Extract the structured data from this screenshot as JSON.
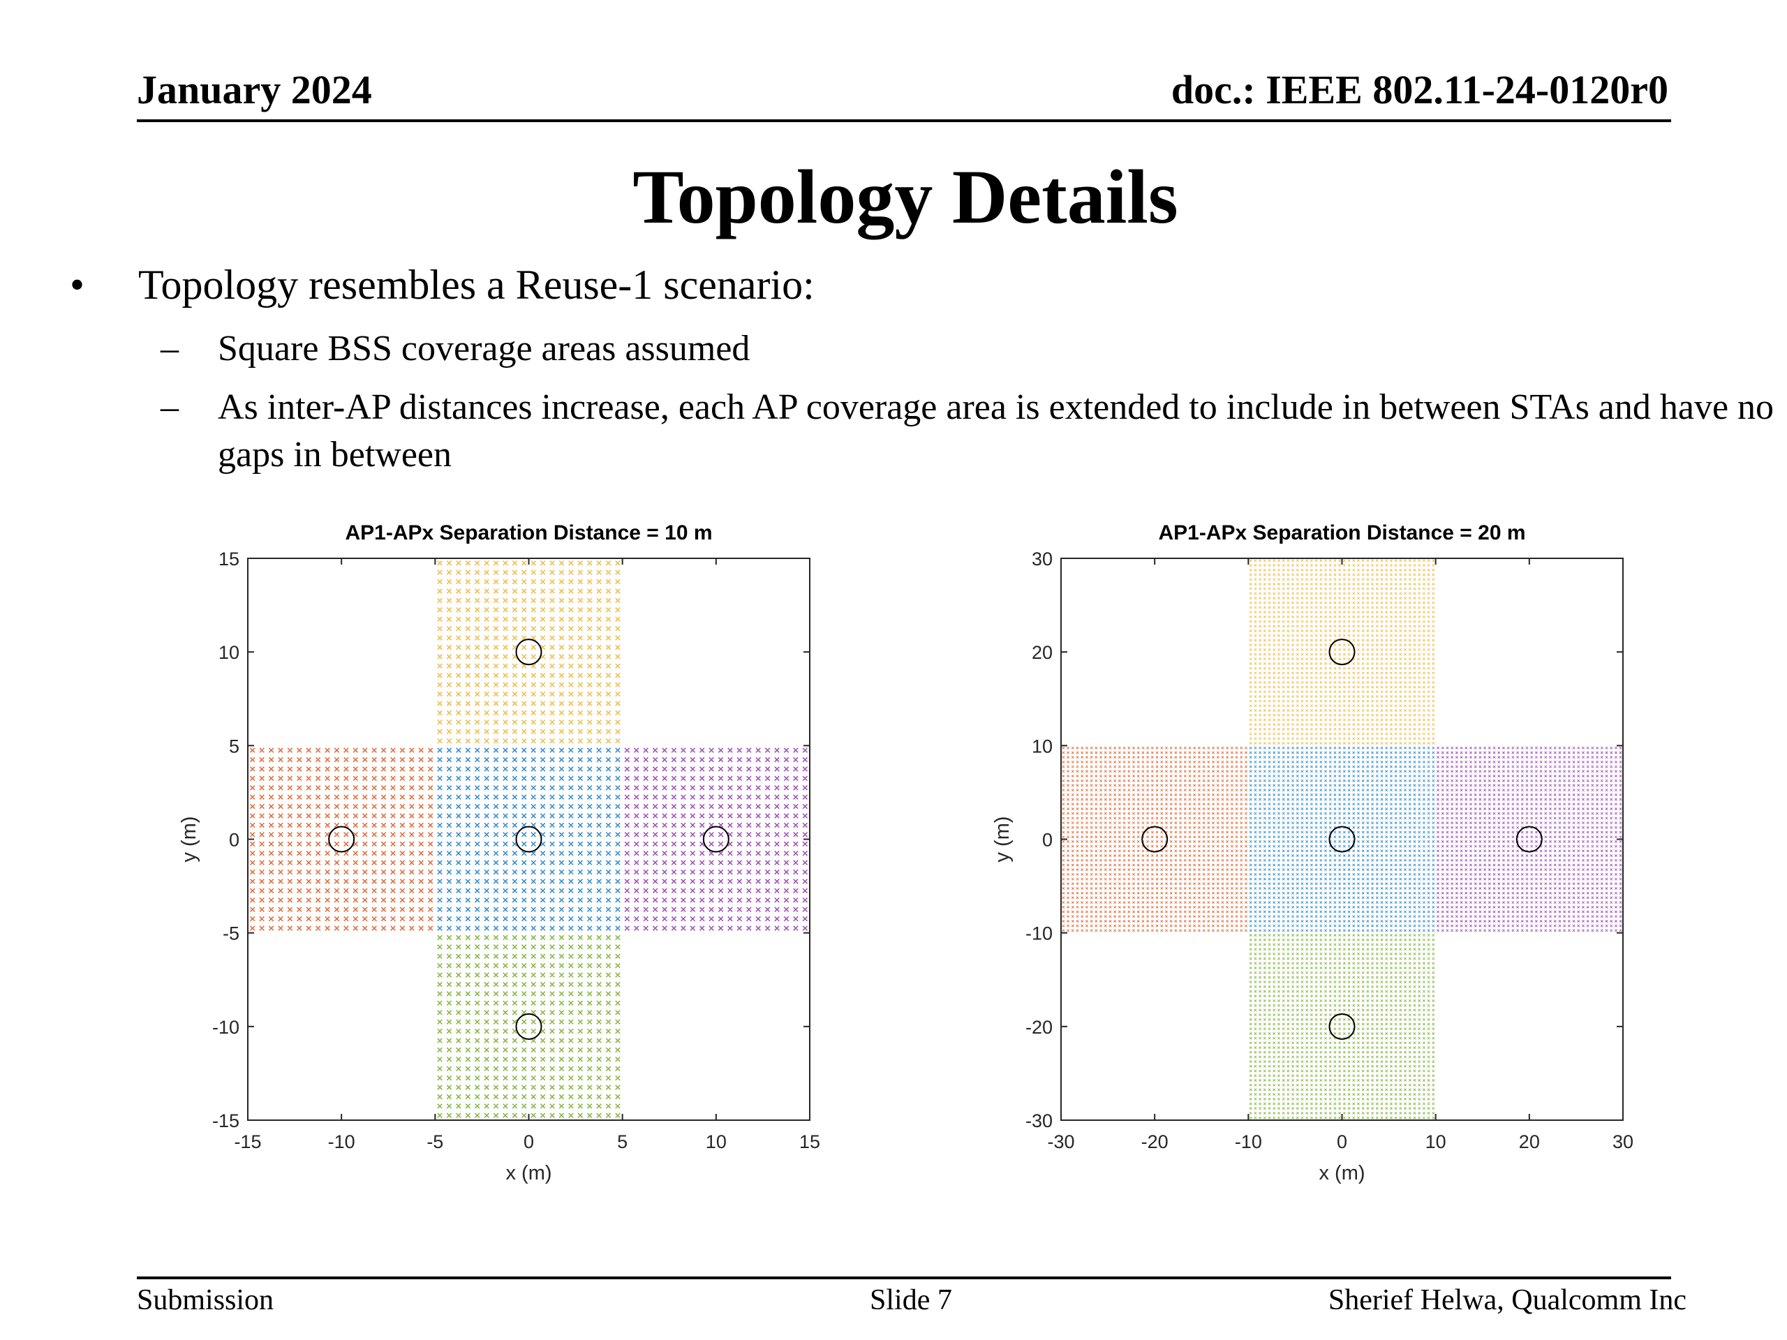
{
  "header": {
    "date": "January 2024",
    "doc_id": "doc.: IEEE 802.11-24-0120r0"
  },
  "slide_title": "Topology Details",
  "bullets": {
    "main": {
      "marker": "•",
      "text": "Topology resembles a Reuse-1 scenario:"
    },
    "subs": [
      {
        "marker": "–",
        "text": "Square BSS coverage areas assumed"
      },
      {
        "marker": "–",
        "text": "As inter-AP distances increase, each AP coverage area is extended to include in between STAs and have no gaps in between"
      }
    ]
  },
  "colors": {
    "center": "#3a8fd0",
    "left": "#e07040",
    "top": "#ecc050",
    "right": "#a055b8",
    "bottom": "#88b848",
    "ap_marker": "#000000"
  },
  "chart_data": [
    {
      "type": "scatter",
      "title": "AP1-APx Separation Distance  = 10 m",
      "xlabel": "x (m)",
      "ylabel": "y (m)",
      "xlim": [
        -15,
        15
      ],
      "ylim": [
        -15,
        15
      ],
      "xticks": [
        -15,
        -10,
        -5,
        0,
        5,
        10,
        15
      ],
      "yticks": [
        -15,
        -10,
        -5,
        0,
        5,
        10,
        15
      ],
      "marker": "x",
      "grid": false,
      "series": [
        {
          "area": "center",
          "x_range": [
            -4.75,
            4.75
          ],
          "y_range": [
            -4.75,
            4.75
          ],
          "step": 0.5
        },
        {
          "area": "left",
          "x_range": [
            -14.75,
            -5.25
          ],
          "y_range": [
            -4.75,
            4.75
          ],
          "step": 0.5
        },
        {
          "area": "right",
          "x_range": [
            5.25,
            14.75
          ],
          "y_range": [
            -4.75,
            4.75
          ],
          "step": 0.5
        },
        {
          "area": "top",
          "x_range": [
            -4.75,
            4.75
          ],
          "y_range": [
            5.25,
            14.75
          ],
          "step": 0.5
        },
        {
          "area": "bottom",
          "x_range": [
            -4.75,
            4.75
          ],
          "y_range": [
            -14.75,
            -5.25
          ],
          "step": 0.5
        }
      ],
      "access_points": [
        {
          "x": 0,
          "y": 0
        },
        {
          "x": -10,
          "y": 0
        },
        {
          "x": 10,
          "y": 0
        },
        {
          "x": 0,
          "y": 10
        },
        {
          "x": 0,
          "y": -10
        }
      ]
    },
    {
      "type": "scatter",
      "title": "AP1-APx Separation Distance  = 20 m",
      "xlabel": "x (m)",
      "ylabel": "y (m)",
      "xlim": [
        -30,
        30
      ],
      "ylim": [
        -30,
        30
      ],
      "xticks": [
        -30,
        -20,
        -10,
        0,
        10,
        20,
        30
      ],
      "yticks": [
        -30,
        -20,
        -10,
        0,
        10,
        20,
        30
      ],
      "marker": "x",
      "grid": false,
      "series": [
        {
          "area": "center",
          "x_range": [
            -9.75,
            9.75
          ],
          "y_range": [
            -9.75,
            9.75
          ],
          "step": 0.5
        },
        {
          "area": "left",
          "x_range": [
            -29.75,
            -10.25
          ],
          "y_range": [
            -9.75,
            9.75
          ],
          "step": 0.5
        },
        {
          "area": "right",
          "x_range": [
            10.25,
            29.75
          ],
          "y_range": [
            -9.75,
            9.75
          ],
          "step": 0.5
        },
        {
          "area": "top",
          "x_range": [
            -9.75,
            9.75
          ],
          "y_range": [
            10.25,
            29.75
          ],
          "step": 0.5
        },
        {
          "area": "bottom",
          "x_range": [
            -9.75,
            9.75
          ],
          "y_range": [
            -29.75,
            -10.25
          ],
          "step": 0.5
        }
      ],
      "access_points": [
        {
          "x": 0,
          "y": 0
        },
        {
          "x": -20,
          "y": 0
        },
        {
          "x": 20,
          "y": 0
        },
        {
          "x": 0,
          "y": 20
        },
        {
          "x": 0,
          "y": -20
        }
      ]
    }
  ],
  "footer": {
    "left": "Submission",
    "center": "Slide 7",
    "right": "Sherief Helwa, Qualcomm Inc"
  }
}
